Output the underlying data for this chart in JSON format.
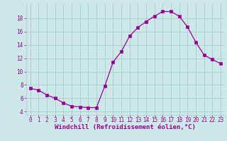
{
  "x": [
    0,
    1,
    2,
    3,
    4,
    5,
    6,
    7,
    8,
    9,
    10,
    11,
    12,
    13,
    14,
    15,
    16,
    17,
    18,
    19,
    20,
    21,
    22,
    23
  ],
  "y": [
    7.5,
    7.2,
    6.5,
    6.0,
    5.3,
    4.8,
    4.7,
    4.6,
    4.6,
    7.8,
    11.4,
    13.0,
    15.3,
    16.6,
    17.5,
    18.3,
    19.0,
    19.0,
    18.3,
    16.7,
    14.4,
    12.5,
    11.8,
    11.2
  ],
  "line_color": "#990099",
  "marker_color": "#990099",
  "bg_color": "#cce8e8",
  "grid_color": "#aacccc",
  "xlabel": "Windchill (Refroidissement éolien,°C)",
  "ylim": [
    3.5,
    20.2
  ],
  "xlim": [
    -0.5,
    23.5
  ],
  "yticks": [
    4,
    6,
    8,
    10,
    12,
    14,
    16,
    18
  ],
  "xticks": [
    0,
    1,
    2,
    3,
    4,
    5,
    6,
    7,
    8,
    9,
    10,
    11,
    12,
    13,
    14,
    15,
    16,
    17,
    18,
    19,
    20,
    21,
    22,
    23
  ],
  "tick_color": "#990099",
  "label_fontsize": 6.5,
  "tick_fontsize": 5.5
}
